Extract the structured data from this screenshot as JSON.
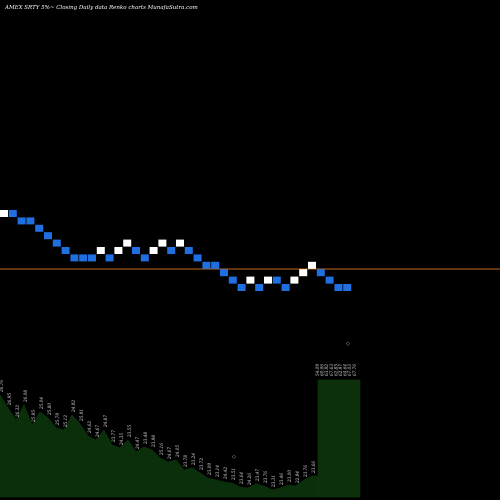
{
  "header": {
    "title": "AMEX  SRTY 5%~  Closing Daily data  Renko  charts MunafaSutra.com"
  },
  "chart_data": {
    "type": "renko",
    "title": "AMEX  SRTY 5%~  Closing Daily data  Renko  charts MunafaSutra.com",
    "colors": {
      "up_brick": "#ffffff",
      "down_brick": "#1f6fe0",
      "reference_line": "#c06a1a",
      "volume_fill": "#0b2e0b",
      "volume_stroke": "#0d3a0d"
    },
    "brick_levels": [
      0,
      0,
      -1,
      -1,
      -2,
      -3,
      -4,
      -5,
      -6,
      -6,
      -6,
      -5,
      -6,
      -5,
      -4,
      -5,
      -6,
      -5,
      -4,
      -5,
      -4,
      -5,
      -6,
      -7,
      -7,
      -8,
      -9,
      -10,
      -9,
      -10,
      -9,
      -9,
      -10,
      -9,
      -8,
      -7,
      -8,
      -9,
      -10,
      -10
    ],
    "reference_level": -7.5,
    "volume_labels": [
      "26.76",
      "26.95",
      "26.32",
      "26.08",
      "25.95",
      "25.04",
      "25.80",
      "25.79",
      "25.12",
      "24.92",
      "25.91",
      "24.62",
      "24.67",
      "24.87",
      "23.77",
      "24.35",
      "23.55",
      "24.47",
      "23.48",
      "23.98",
      "25.16",
      "24.67",
      "24.05",
      "23.78",
      "23.24",
      "23.72",
      "23.09",
      "23.14",
      "24.42",
      "23.51",
      "23.64",
      "24.26",
      "23.47",
      "23.76",
      "23.31",
      "23.46",
      "23.00",
      "22.94",
      "23.76",
      "23.66"
    ],
    "volume_top_labels": [
      "54.09",
      "60.06",
      "63.92",
      "67.63",
      "62.85",
      "62.97",
      "64.64",
      "67.03",
      "67.76"
    ]
  }
}
